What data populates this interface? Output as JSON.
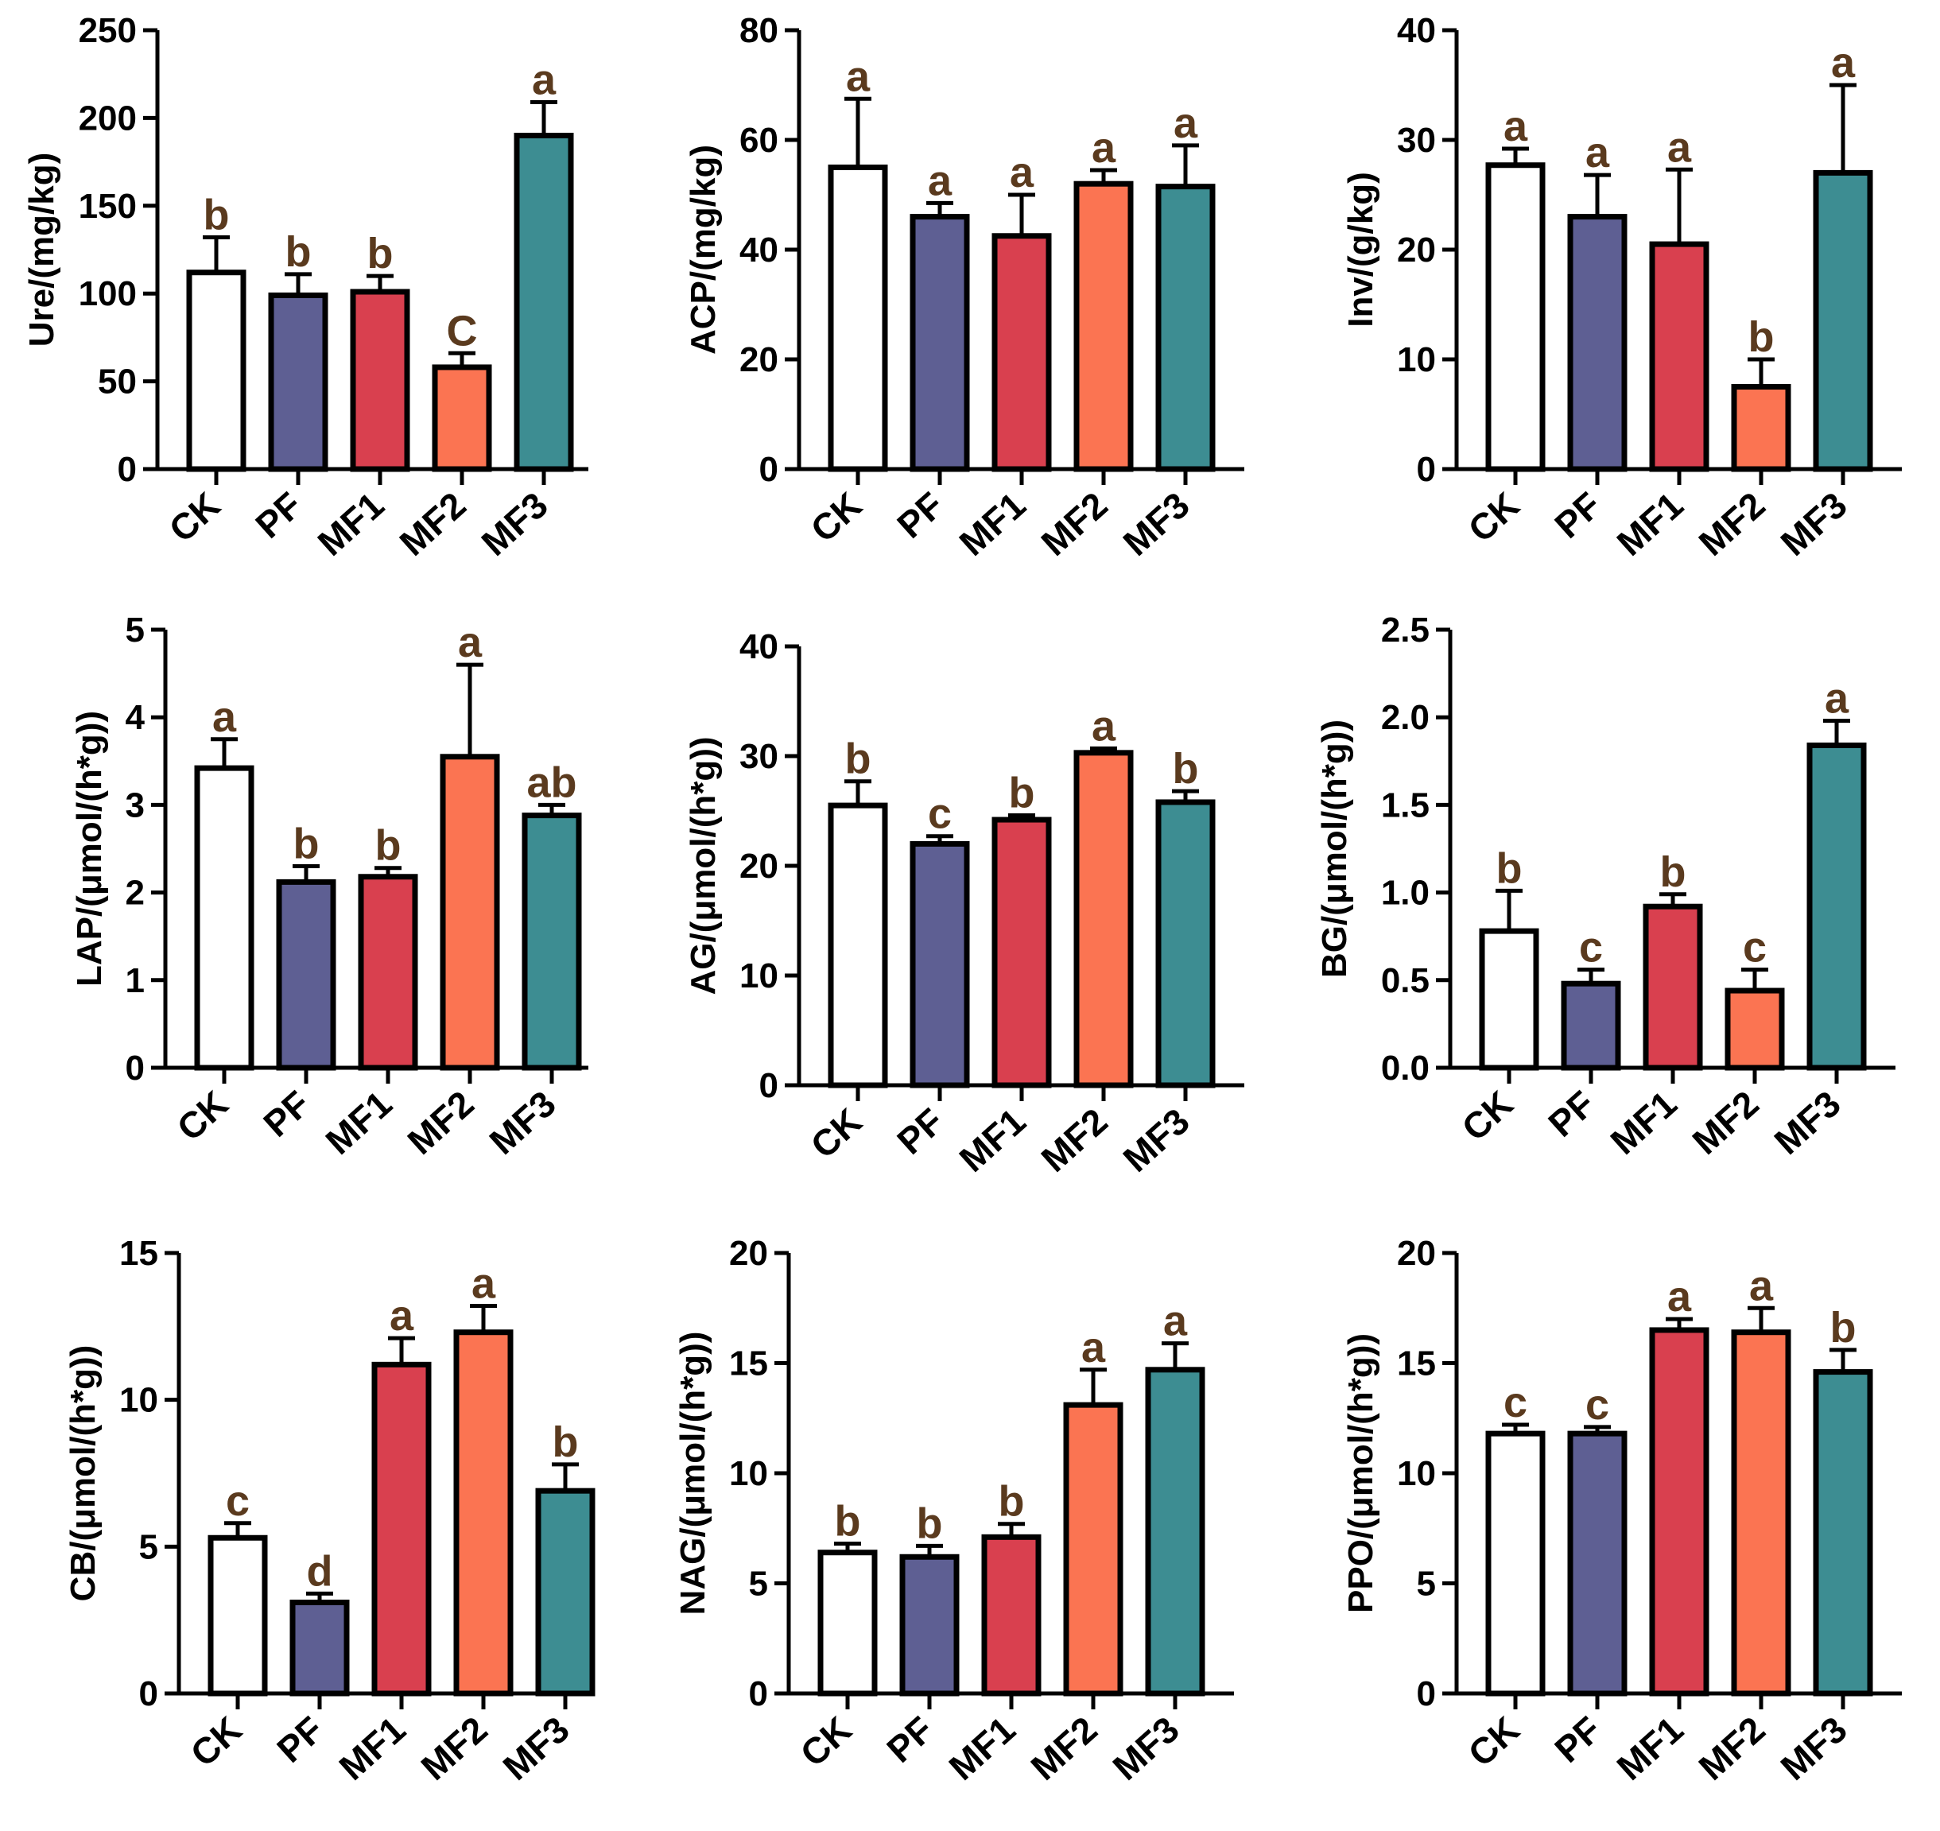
{
  "colors": {
    "CK": "#ffffff",
    "PF": "#5e5f93",
    "MF1": "#d9404f",
    "MF2": "#fb7452",
    "MF3": "#3d8d92",
    "axis": "#000000",
    "sig_text": "#5a3a1e"
  },
  "chart_data": [
    {
      "type": "bar",
      "ylabel": "Ure/(mg/kg)",
      "categories": [
        "CK",
        "PF",
        "MF1",
        "MF2",
        "MF3"
      ],
      "values": [
        112,
        99,
        101,
        58,
        190
      ],
      "errors": [
        20,
        12,
        9,
        8,
        19
      ],
      "significance": [
        "b",
        "b",
        "b",
        "C",
        "a"
      ],
      "ylim": [
        0,
        250
      ],
      "yticks": [
        0,
        50,
        100,
        150,
        200,
        250
      ],
      "ytick_labels": [
        "0",
        "50",
        "100",
        "150",
        "200",
        "250"
      ]
    },
    {
      "type": "bar",
      "ylabel": "ACP/(mg/kg)",
      "categories": [
        "CK",
        "PF",
        "MF1",
        "MF2",
        "MF3"
      ],
      "values": [
        55,
        46,
        42.5,
        52,
        51.5
      ],
      "errors": [
        12.5,
        2.5,
        7.5,
        2.5,
        7.5
      ],
      "significance": [
        "a",
        "a",
        "a",
        "a",
        "a"
      ],
      "ylim": [
        0,
        80
      ],
      "yticks": [
        0,
        20,
        40,
        60,
        80
      ],
      "ytick_labels": [
        "0",
        "20",
        "40",
        "60",
        "80"
      ]
    },
    {
      "type": "bar",
      "ylabel": "Inv/(g/kg)",
      "categories": [
        "CK",
        "PF",
        "MF1",
        "MF2",
        "MF3"
      ],
      "values": [
        27.7,
        23,
        20.5,
        7.5,
        27
      ],
      "errors": [
        1.5,
        3.8,
        6.8,
        2.5,
        8
      ],
      "significance": [
        "a",
        "a",
        "a",
        "b",
        "a"
      ],
      "ylim": [
        0,
        40
      ],
      "yticks": [
        0,
        10,
        20,
        30,
        40
      ],
      "ytick_labels": [
        "0",
        "10",
        "20",
        "30",
        "40"
      ]
    },
    {
      "type": "bar",
      "ylabel": "LAP/(μmol/(h*g))",
      "categories": [
        "CK",
        "PF",
        "MF1",
        "MF2",
        "MF3"
      ],
      "values": [
        3.42,
        2.12,
        2.18,
        3.55,
        2.88
      ],
      "errors": [
        0.33,
        0.18,
        0.1,
        1.05,
        0.12
      ],
      "significance": [
        "a",
        "b",
        "b",
        "a",
        "ab"
      ],
      "ylim": [
        0,
        5
      ],
      "yticks": [
        0,
        1,
        2,
        3,
        4,
        5
      ],
      "ytick_labels": [
        "0",
        "1",
        "2",
        "3",
        "4",
        "5"
      ]
    },
    {
      "type": "bar",
      "ylabel": "AG/(μmol/(h*g))",
      "categories": [
        "CK",
        "PF",
        "MF1",
        "MF2",
        "MF3"
      ],
      "values": [
        25.5,
        22,
        24.2,
        30.3,
        25.8
      ],
      "errors": [
        2.2,
        0.7,
        0.4,
        0.4,
        1
      ],
      "significance": [
        "b",
        "c",
        "b",
        "a",
        "b"
      ],
      "ylim": [
        0,
        40
      ],
      "yticks": [
        0,
        10,
        20,
        30,
        40
      ],
      "ytick_labels": [
        "0",
        "10",
        "20",
        "30",
        "40"
      ]
    },
    {
      "type": "bar",
      "ylabel": "BG/(μmol/(h*g))",
      "categories": [
        "CK",
        "PF",
        "MF1",
        "MF2",
        "MF3"
      ],
      "values": [
        0.78,
        0.48,
        0.92,
        0.44,
        1.84
      ],
      "errors": [
        0.23,
        0.08,
        0.07,
        0.12,
        0.14
      ],
      "significance": [
        "b",
        "c",
        "b",
        "c",
        "a"
      ],
      "ylim": [
        0,
        2.5
      ],
      "yticks": [
        0,
        0.5,
        1,
        1.5,
        2,
        2.5
      ],
      "ytick_labels": [
        "0.0",
        "0.5",
        "1.0",
        "1.5",
        "2.0",
        "2.5"
      ]
    },
    {
      "type": "bar",
      "ylabel": "CB/(μmol/(h*g))",
      "categories": [
        "CK",
        "PF",
        "MF1",
        "MF2",
        "MF3"
      ],
      "values": [
        5.3,
        3.1,
        11.2,
        12.3,
        6.9
      ],
      "errors": [
        0.5,
        0.3,
        0.9,
        0.9,
        0.9
      ],
      "significance": [
        "c",
        "d",
        "a",
        "a",
        "b"
      ],
      "ylim": [
        0,
        15
      ],
      "yticks": [
        0,
        5,
        10,
        15
      ],
      "ytick_labels": [
        "0",
        "5",
        "10",
        "15"
      ]
    },
    {
      "type": "bar",
      "ylabel": "NAG/(μmol/(h*g))",
      "categories": [
        "CK",
        "PF",
        "MF1",
        "MF2",
        "MF3"
      ],
      "values": [
        6.4,
        6.2,
        7.1,
        13.1,
        14.7
      ],
      "errors": [
        0.4,
        0.5,
        0.6,
        1.6,
        1.2
      ],
      "significance": [
        "b",
        "b",
        "b",
        "a",
        "a"
      ],
      "ylim": [
        0,
        20
      ],
      "yticks": [
        0,
        5,
        10,
        15,
        20
      ],
      "ytick_labels": [
        "0",
        "5",
        "10",
        "15",
        "20"
      ]
    },
    {
      "type": "bar",
      "ylabel": "PPO/(μmol/(h*g))",
      "categories": [
        "CK",
        "PF",
        "MF1",
        "MF2",
        "MF3"
      ],
      "values": [
        11.8,
        11.8,
        16.5,
        16.4,
        14.6
      ],
      "errors": [
        0.4,
        0.3,
        0.5,
        1.1,
        1
      ],
      "significance": [
        "c",
        "c",
        "a",
        "a",
        "b"
      ],
      "ylim": [
        0,
        20
      ],
      "yticks": [
        0,
        5,
        10,
        15,
        20
      ],
      "ytick_labels": [
        "0",
        "5",
        "10",
        "15",
        "20"
      ]
    }
  ]
}
